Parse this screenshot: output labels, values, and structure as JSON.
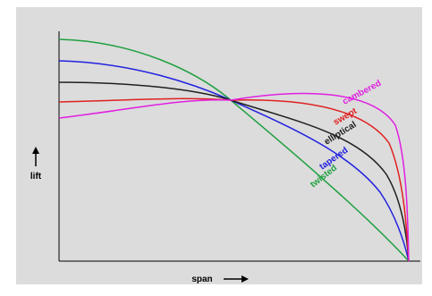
{
  "axes": {
    "y_label": "lift",
    "x_label": "span"
  },
  "curves": [
    {
      "label": "cambered",
      "color": "#e020e0"
    },
    {
      "label": "swept",
      "color": "#e02020"
    },
    {
      "label": "elliptical",
      "color": "#202020"
    },
    {
      "label": "tapered",
      "color": "#2020e0"
    },
    {
      "label": "twisted",
      "color": "#20a040"
    }
  ]
}
